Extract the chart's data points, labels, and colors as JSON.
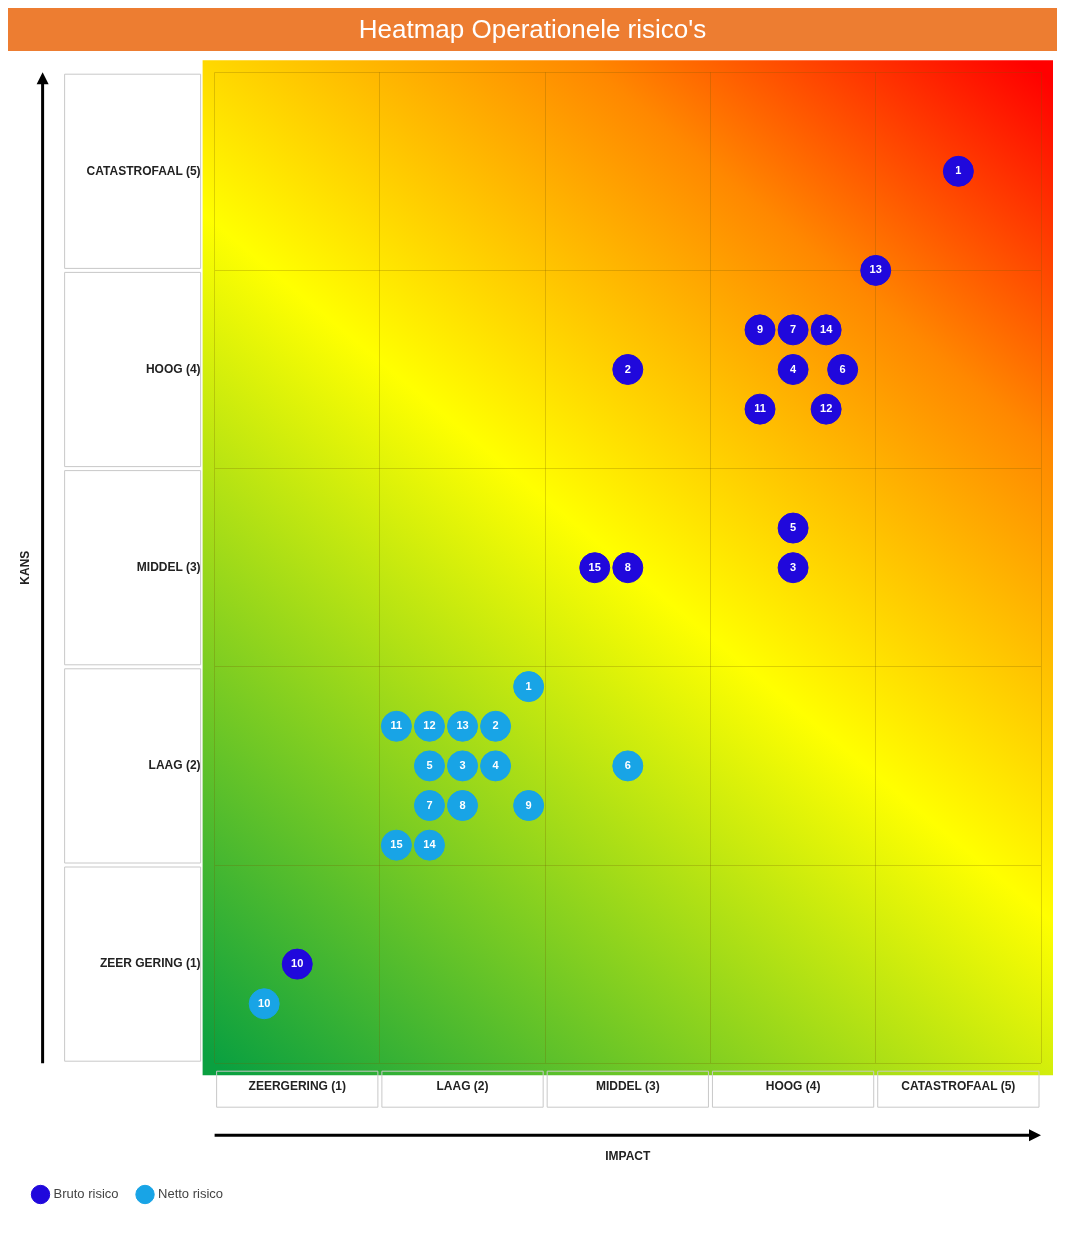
{
  "chart_data": {
    "type": "scatter",
    "title": "Heatmap Operationele risico's",
    "xlabel": "IMPACT",
    "ylabel": "KANS",
    "xlim": [
      0.5,
      5.5
    ],
    "ylim": [
      0.5,
      5.5
    ],
    "xticks": [
      {
        "value": 0.5,
        "label": null
      },
      {
        "value": 1,
        "label": "ZEERGERING (1)"
      },
      {
        "value": 1.5,
        "label": null
      },
      {
        "value": 2,
        "label": "LAAG (2)"
      },
      {
        "value": 2.5,
        "label": null
      },
      {
        "value": 3,
        "label": "MIDDEL (3)"
      },
      {
        "value": 3.5,
        "label": null
      },
      {
        "value": 4,
        "label": "HOOG (4)"
      },
      {
        "value": 4.5,
        "label": null
      },
      {
        "value": 5,
        "label": "CATASTROFAAL (5)"
      },
      {
        "value": 5.5,
        "label": null
      }
    ],
    "yticks": [
      {
        "value": 0.5,
        "label": null
      },
      {
        "value": 1,
        "label": "ZEER GERING (1)"
      },
      {
        "value": 1.5,
        "label": null
      },
      {
        "value": 2,
        "label": "LAAG (2)"
      },
      {
        "value": 2.5,
        "label": null
      },
      {
        "value": 3,
        "label": "MIDDEL (3)"
      },
      {
        "value": 3.5,
        "label": null
      },
      {
        "value": 4,
        "label": "HOOG (4)"
      },
      {
        "value": 4.5,
        "label": null
      },
      {
        "value": 5,
        "label": "CATASTROFAAL (5)"
      },
      {
        "value": 5.5,
        "label": null
      }
    ],
    "grid": true,
    "legend": "bottom left",
    "marker": "circle",
    "series": [
      {
        "name": "Bruto risico",
        "color": "#2008dc",
        "x": [
          5.0,
          4.5,
          3.8,
          4.0,
          4.2,
          3.0,
          4.0,
          4.3,
          3.8,
          4.2,
          4.0,
          4.0,
          2.8,
          3.0,
          1.0
        ],
        "values": [
          5.0,
          4.5,
          4.2,
          4.2,
          4.2,
          4.0,
          4.0,
          4.0,
          3.8,
          3.8,
          3.2,
          3.0,
          3.0,
          3.0,
          1.0
        ]
      },
      {
        "name": "Netto risico",
        "color": "#18a4e6",
        "x": [
          2.4,
          1.6,
          1.8,
          2.0,
          2.2,
          1.8,
          2.0,
          2.2,
          3.0,
          1.8,
          2.0,
          2.4,
          1.6,
          1.8,
          0.8
        ],
        "values": [
          2.4,
          2.2,
          2.2,
          2.2,
          2.2,
          2.0,
          2.0,
          2.0,
          2.0,
          1.8,
          1.8,
          1.8,
          1.6,
          1.6,
          0.8
        ]
      }
    ],
    "annotations": [
      {
        "text": "1",
        "x": 5.0,
        "y": 5.0
      },
      {
        "text": "13",
        "x": 4.5,
        "y": 4.5
      },
      {
        "text": "9",
        "x": 3.8,
        "y": 4.2
      },
      {
        "text": "7",
        "x": 4.0,
        "y": 4.2
      },
      {
        "text": "14",
        "x": 4.2,
        "y": 4.2
      },
      {
        "text": "2",
        "x": 3.0,
        "y": 4.0
      },
      {
        "text": "4",
        "x": 4.0,
        "y": 4.0
      },
      {
        "text": "6",
        "x": 4.3,
        "y": 4.0
      },
      {
        "text": "11",
        "x": 3.8,
        "y": 3.8
      },
      {
        "text": "12",
        "x": 4.2,
        "y": 3.8
      },
      {
        "text": "5",
        "x": 4.0,
        "y": 3.2
      },
      {
        "text": "3",
        "x": 4.0,
        "y": 3.0
      },
      {
        "text": "15",
        "x": 2.8,
        "y": 3.0
      },
      {
        "text": "8",
        "x": 3.0,
        "y": 3.0
      },
      {
        "text": "10",
        "x": 1.0,
        "y": 1.0
      },
      {
        "text": "1",
        "x": 2.4,
        "y": 2.4
      },
      {
        "text": "11",
        "x": 1.6,
        "y": 2.2
      },
      {
        "text": "12",
        "x": 1.8,
        "y": 2.2
      },
      {
        "text": "13",
        "x": 2.0,
        "y": 2.2
      },
      {
        "text": "2",
        "x": 2.2,
        "y": 2.2
      },
      {
        "text": "5",
        "x": 1.8,
        "y": 2.0
      },
      {
        "text": "3",
        "x": 2.0,
        "y": 2.0
      },
      {
        "text": "4",
        "x": 2.2,
        "y": 2.0
      },
      {
        "text": "6",
        "x": 3.0,
        "y": 2.0
      },
      {
        "text": "7",
        "x": 1.8,
        "y": 1.8
      },
      {
        "text": "8",
        "x": 2.0,
        "y": 1.8
      },
      {
        "text": "9",
        "x": 2.4,
        "y": 1.8
      },
      {
        "text": "15",
        "x": 1.6,
        "y": 1.6
      },
      {
        "text": "14",
        "x": 1.8,
        "y": 1.6
      },
      {
        "text": "10",
        "x": 0.8,
        "y": 0.8
      }
    ]
  }
}
